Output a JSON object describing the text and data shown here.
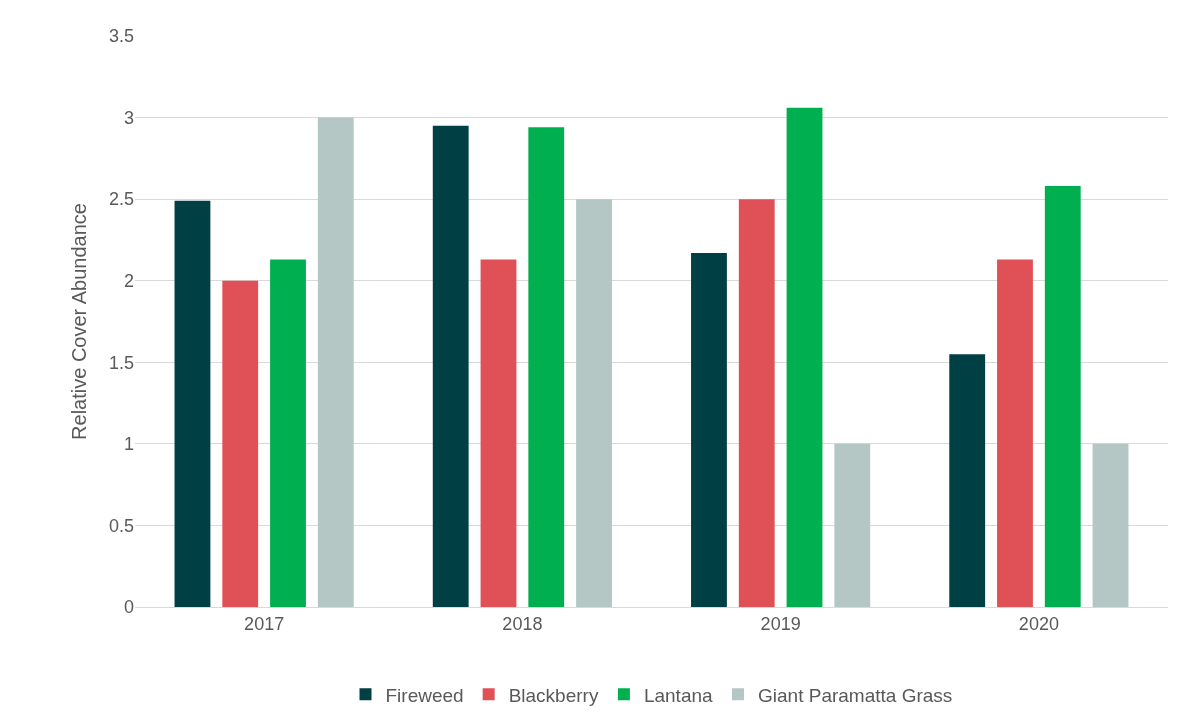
{
  "chart_data": {
    "type": "bar",
    "ylabel": "Relative Cover Abundance",
    "categories": [
      "2017",
      "2018",
      "2019",
      "2020"
    ],
    "series": [
      {
        "name": "Fireweed",
        "color": "#003f44",
        "values": [
          2.49,
          2.95,
          2.17,
          1.55
        ]
      },
      {
        "name": "Blackberry",
        "color": "#e05157",
        "values": [
          2.0,
          2.13,
          2.5,
          2.13
        ]
      },
      {
        "name": "Lantana",
        "color": "#00b050",
        "values": [
          2.13,
          2.94,
          3.06,
          2.58
        ]
      },
      {
        "name": "Giant Paramatta Grass",
        "color": "#b4c7c5",
        "values": [
          3.0,
          2.5,
          1.0,
          1.0
        ]
      }
    ],
    "ylim": [
      0,
      3.5
    ],
    "yticks": [
      0,
      0.5,
      1,
      1.5,
      2,
      2.5,
      3,
      3.5
    ],
    "grid": "y",
    "legend": "bottom"
  }
}
